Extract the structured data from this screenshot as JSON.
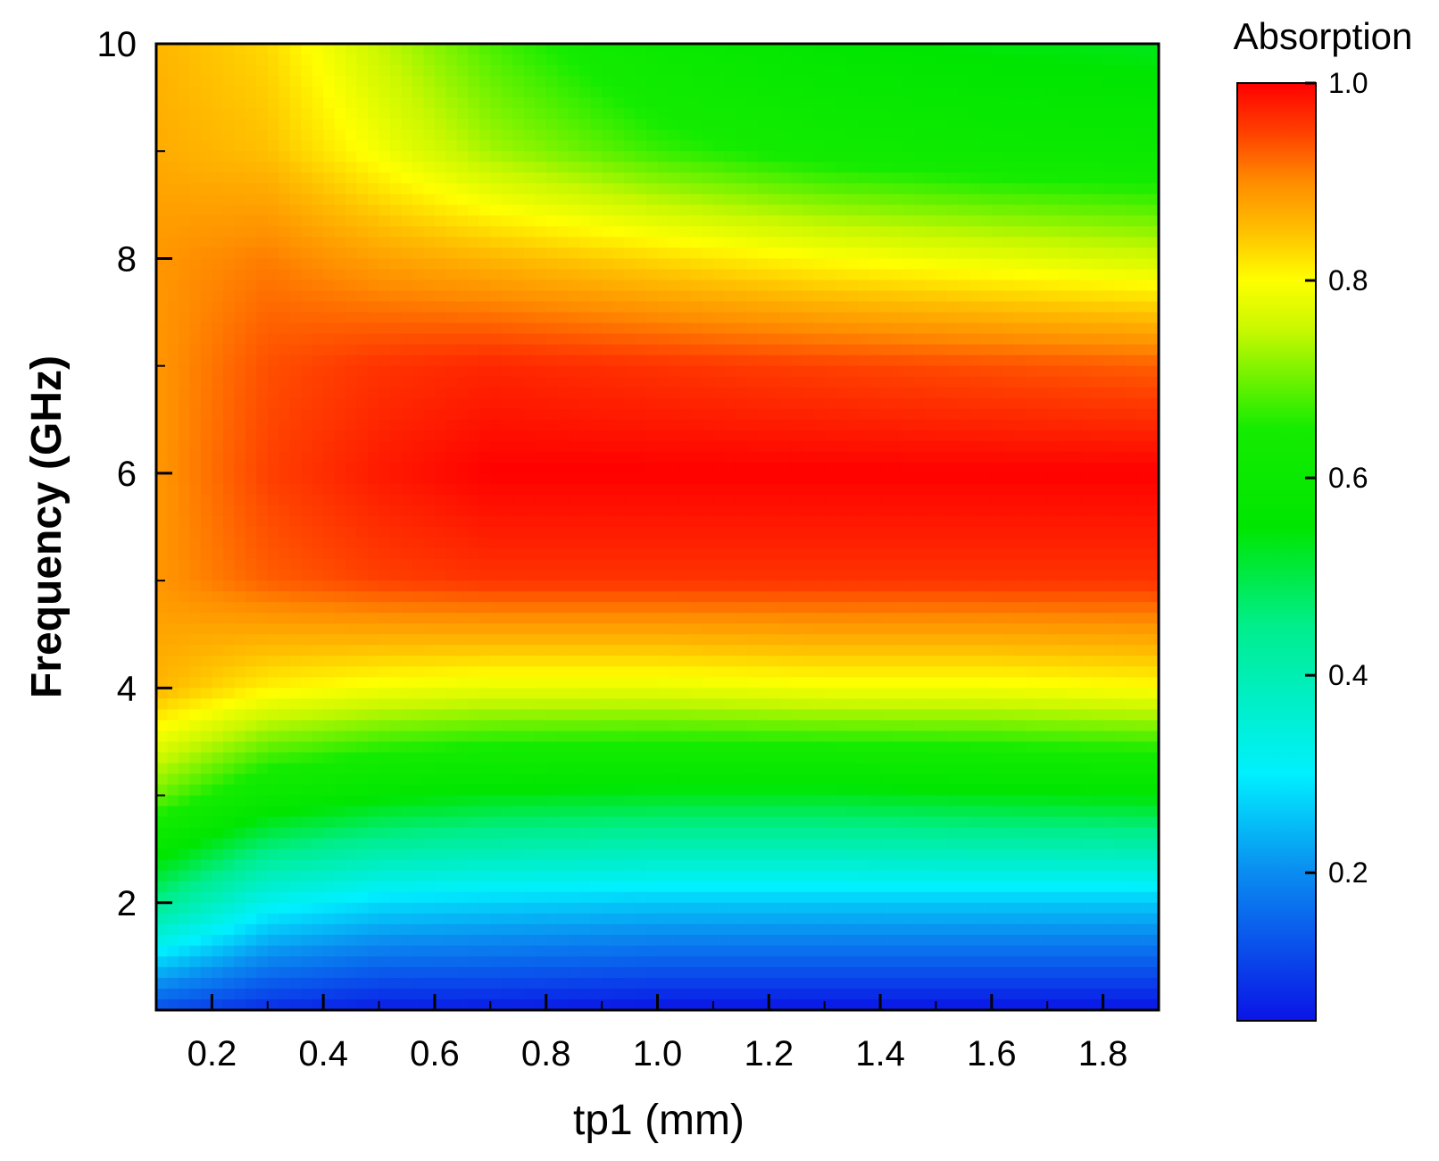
{
  "chart_data": {
    "type": "heatmap",
    "title": "",
    "xlabel": "tp1 (mm)",
    "ylabel": "Frequency (GHz)",
    "xlim": [
      0.1,
      1.9
    ],
    "ylim": [
      1,
      10
    ],
    "x_ticks": [
      "0.2",
      "0.4",
      "0.6",
      "0.8",
      "1.0",
      "1.2",
      "1.4",
      "1.6",
      "1.8"
    ],
    "x_tick_values": [
      0.2,
      0.4,
      0.6,
      0.8,
      1.0,
      1.2,
      1.4,
      1.6,
      1.8
    ],
    "y_ticks": [
      "2",
      "4",
      "6",
      "8",
      "10"
    ],
    "y_tick_values": [
      2,
      4,
      6,
      8,
      10
    ],
    "colorbar": {
      "title": "Absorption",
      "range": [
        0.05,
        1.0
      ],
      "ticks": [
        "0.2",
        "0.4",
        "0.6",
        "0.8",
        "1.0"
      ],
      "tick_values": [
        0.2,
        0.4,
        0.6,
        0.8,
        1.0
      ],
      "colormap": [
        {
          "v": 0.05,
          "color": "#0a14e6"
        },
        {
          "v": 0.2,
          "color": "#0a8cf0"
        },
        {
          "v": 0.3,
          "color": "#00f0ff"
        },
        {
          "v": 0.45,
          "color": "#00ee8c"
        },
        {
          "v": 0.55,
          "color": "#00e600"
        },
        {
          "v": 0.65,
          "color": "#14ec00"
        },
        {
          "v": 0.75,
          "color": "#c8f800"
        },
        {
          "v": 0.8,
          "color": "#ffff00"
        },
        {
          "v": 0.85,
          "color": "#ffc000"
        },
        {
          "v": 0.9,
          "color": "#ff8c00"
        },
        {
          "v": 0.95,
          "color": "#ff4000"
        },
        {
          "v": 1.0,
          "color": "#ff0000"
        }
      ]
    },
    "surface_samples": {
      "x": [
        0.1,
        0.3,
        0.5,
        0.7,
        1.0,
        1.3,
        1.6,
        1.9
      ],
      "y": [
        1,
        2,
        3,
        4,
        5,
        6,
        7,
        8,
        9,
        10
      ],
      "z": [
        [
          0.12,
          0.08,
          0.06,
          0.06,
          0.05,
          0.05,
          0.05,
          0.05
        ],
        [
          0.45,
          0.32,
          0.28,
          0.27,
          0.26,
          0.26,
          0.26,
          0.26
        ],
        [
          0.7,
          0.6,
          0.56,
          0.54,
          0.53,
          0.53,
          0.54,
          0.55
        ],
        [
          0.86,
          0.81,
          0.79,
          0.78,
          0.78,
          0.79,
          0.79,
          0.8
        ],
        [
          0.89,
          0.93,
          0.95,
          0.96,
          0.96,
          0.96,
          0.96,
          0.96
        ],
        [
          0.89,
          0.95,
          0.98,
          1.0,
          1.0,
          1.0,
          1.0,
          1.0
        ],
        [
          0.89,
          0.94,
          0.96,
          0.97,
          0.96,
          0.95,
          0.94,
          0.93
        ],
        [
          0.89,
          0.91,
          0.88,
          0.86,
          0.83,
          0.8,
          0.78,
          0.76
        ],
        [
          0.87,
          0.85,
          0.79,
          0.73,
          0.67,
          0.63,
          0.61,
          0.6
        ],
        [
          0.86,
          0.83,
          0.75,
          0.68,
          0.6,
          0.56,
          0.54,
          0.53
        ]
      ]
    }
  }
}
